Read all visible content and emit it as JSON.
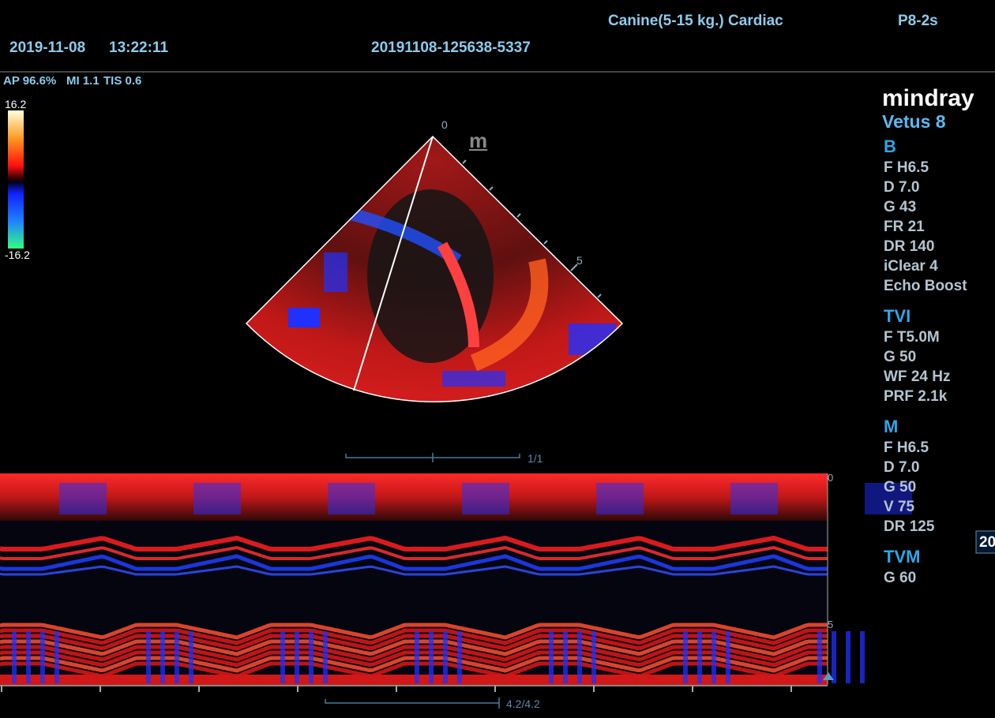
{
  "header": {
    "preset": "Canine(5-15 kg.) Cardiac",
    "probe": "P8-2s",
    "date": "2019-11-08",
    "time": "13:22:11",
    "exam_id": "20191108-125638-5337"
  },
  "acoustic": [
    "AP 96.6%",
    "MI 1.1",
    "TIS 0.6"
  ],
  "color_scale": {
    "max": "16.2",
    "min": "-16.2"
  },
  "sector": {
    "depth_top": "0",
    "depth_mark": "5",
    "logo": "m",
    "frame": "1/1"
  },
  "mmode": {
    "depth_top": "0",
    "depth_mark": "5",
    "sweep": "4.2/4.2"
  },
  "brand": {
    "logo": "mindray",
    "model": "Vetus 8"
  },
  "params": [
    {
      "title": "B",
      "items": [
        "F H6.5",
        "D 7.0",
        "G 43",
        "FR 21",
        "DR 140",
        "iClear 4",
        "Echo Boost"
      ]
    },
    {
      "title": "TVI",
      "items": [
        "F T5.0M",
        "G 50",
        "WF 24 Hz",
        "PRF 2.1k"
      ]
    },
    {
      "title": "M",
      "items": [
        "F H6.5",
        "D 7.0",
        "G 50",
        "V 75",
        "DR 125"
      ]
    },
    {
      "title": "TVM",
      "items": [
        "G 60"
      ]
    }
  ],
  "side_box": "20"
}
